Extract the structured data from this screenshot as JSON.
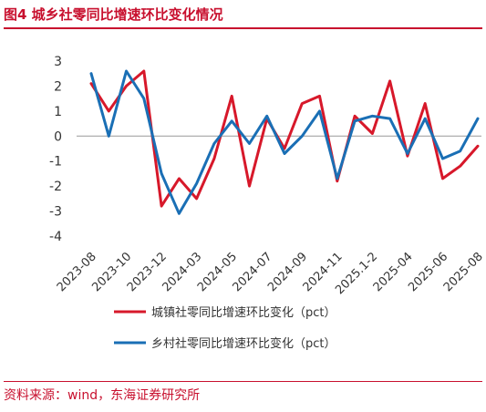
{
  "title": "图4  城乡社零同比增速环比变化情况",
  "source": "资料来源：wind，东海证券研究所",
  "chart_data": {
    "type": "line",
    "title": "图4  城乡社零同比增速环比变化情况",
    "xlabel": "",
    "ylabel": "",
    "ylim": [
      -4,
      3
    ],
    "yticks": [
      -4,
      -3,
      -2,
      -1,
      0,
      1,
      2,
      3
    ],
    "grid": false,
    "legend": "bottom",
    "x": [
      "2023-08",
      "2023-09",
      "2023-10",
      "2023-11",
      "2023-12",
      "2024-01/02",
      "2024-03",
      "2024-04",
      "2024-05",
      "2024-06",
      "2024-07",
      "2024-08",
      "2024-09",
      "2024-10",
      "2024-11",
      "2024-12",
      "2025.1-2",
      "2025-03",
      "2025-04",
      "2025-05",
      "2025-06",
      "2025-07",
      "2025-08"
    ],
    "xtick_labels": [
      "2023-08",
      "2023-10",
      "2023-12",
      "2024-03",
      "2024-05",
      "2024-07",
      "2024-09",
      "2024-11",
      "2025.1-2",
      "2025-04",
      "2025-06",
      "2025-08"
    ],
    "series": [
      {
        "name": "城镇社零同比增速环比变化（pct）",
        "color": "#d7182a",
        "values": [
          2.1,
          1.0,
          2.0,
          2.6,
          -2.8,
          -1.7,
          -2.5,
          -0.9,
          1.6,
          -2.0,
          0.7,
          -0.5,
          1.3,
          1.6,
          -1.8,
          0.8,
          0.1,
          2.2,
          -0.8,
          1.3,
          -1.7,
          -1.2,
          -0.4
        ]
      },
      {
        "name": "乡村社零同比增速环比变化（pct）",
        "color": "#1a6fb5",
        "values": [
          2.5,
          0.0,
          2.6,
          1.5,
          -1.5,
          -3.1,
          -1.9,
          -0.3,
          0.6,
          -0.3,
          0.8,
          -0.7,
          0.0,
          1.0,
          -1.7,
          0.6,
          0.8,
          0.7,
          -0.7,
          0.7,
          -0.9,
          -0.6,
          0.7
        ]
      }
    ]
  }
}
